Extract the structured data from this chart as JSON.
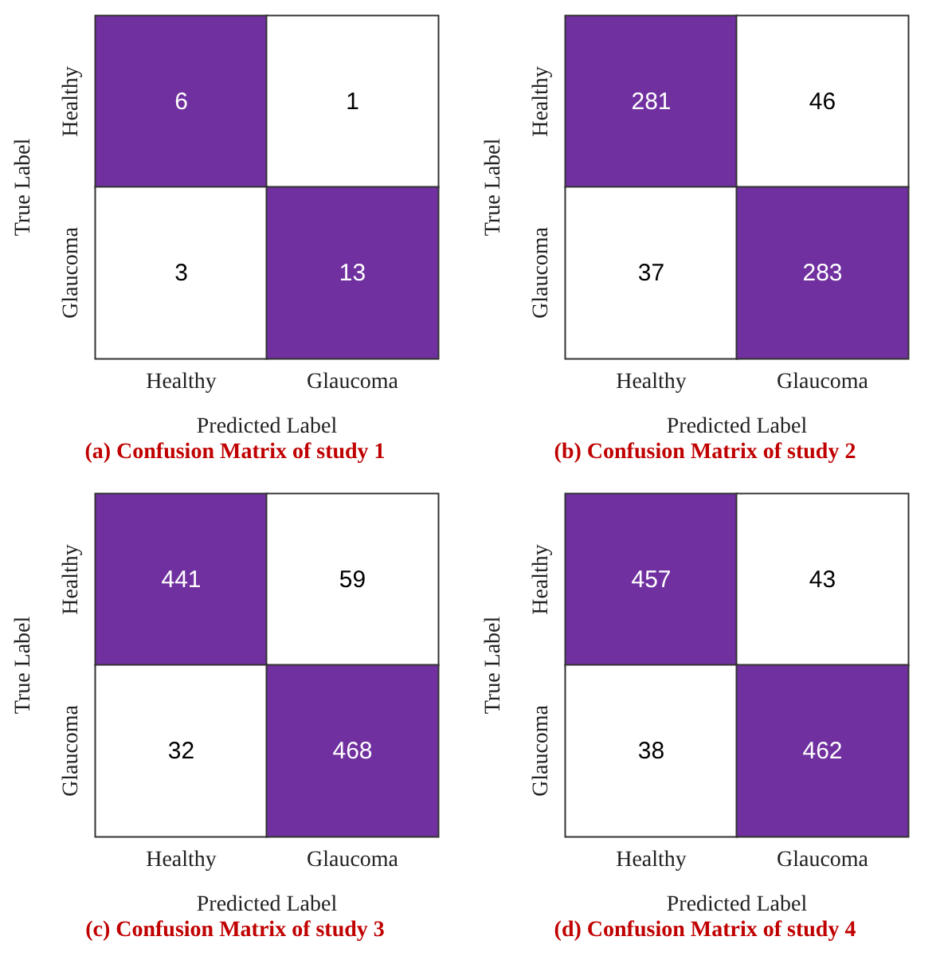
{
  "chart_data": [
    {
      "type": "heatmap",
      "title": "(a) Confusion Matrix of study 1",
      "xlabel": "Predicted Label",
      "ylabel": "True Label",
      "categories": [
        "Healthy",
        "Glaucoma"
      ],
      "y_categories": [
        "Healthy",
        "Glaucoma"
      ],
      "cells": [
        [
          6,
          1
        ],
        [
          3,
          13
        ]
      ],
      "color": "#7030a0",
      "data_labels": true
    },
    {
      "type": "heatmap",
      "title": "(b) Confusion Matrix of study 2",
      "xlabel": "Predicted Label",
      "ylabel": "True Label",
      "categories": [
        "Healthy",
        "Glaucoma"
      ],
      "y_categories": [
        "Healthy",
        "Glaucoma"
      ],
      "cells": [
        [
          281,
          46
        ],
        [
          37,
          283
        ]
      ],
      "color": "#7030a0",
      "data_labels": true
    },
    {
      "type": "heatmap",
      "title": "(c) Confusion Matrix of study 3",
      "xlabel": "Predicted Label",
      "ylabel": "True Label",
      "categories": [
        "Healthy",
        "Glaucoma"
      ],
      "y_categories": [
        "Healthy",
        "Glaucoma"
      ],
      "cells": [
        [
          441,
          59
        ],
        [
          32,
          468
        ]
      ],
      "color": "#7030a0",
      "data_labels": true
    },
    {
      "type": "heatmap",
      "title": "(d) Confusion Matrix of study 4",
      "xlabel": "Predicted Label",
      "ylabel": "True Label",
      "categories": [
        "Healthy",
        "Glaucoma"
      ],
      "y_categories": [
        "Healthy",
        "Glaucoma"
      ],
      "cells": [
        [
          457,
          43
        ],
        [
          38,
          462
        ]
      ],
      "color": "#7030a0",
      "data_labels": true
    }
  ]
}
